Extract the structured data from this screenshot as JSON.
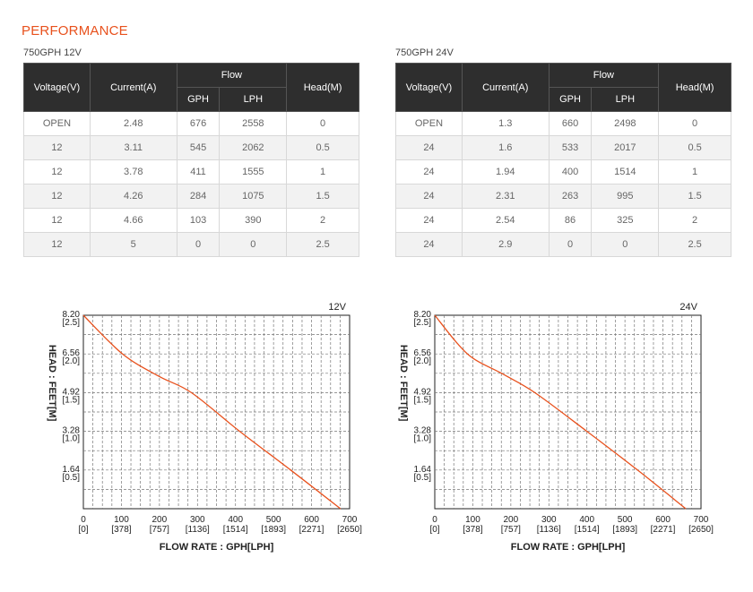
{
  "page": {
    "title": "PERFORMANCE"
  },
  "tables": [
    {
      "caption": "750GPH 12V",
      "headers": {
        "voltage": "Voltage(V)",
        "current": "Current(A)",
        "flow": "Flow",
        "gph": "GPH",
        "lph": "LPH",
        "head": "Head(M)"
      },
      "rows": [
        [
          "OPEN",
          "2.48",
          "676",
          "2558",
          "0"
        ],
        [
          "12",
          "3.11",
          "545",
          "2062",
          "0.5"
        ],
        [
          "12",
          "3.78",
          "411",
          "1555",
          "1"
        ],
        [
          "12",
          "4.26",
          "284",
          "1075",
          "1.5"
        ],
        [
          "12",
          "4.66",
          "103",
          "390",
          "2"
        ],
        [
          "12",
          "5",
          "0",
          "0",
          "2.5"
        ]
      ]
    },
    {
      "caption": "750GPH 24V",
      "headers": {
        "voltage": "Voltage(V)",
        "current": "Current(A)",
        "flow": "Flow",
        "gph": "GPH",
        "lph": "LPH",
        "head": "Head(M)"
      },
      "rows": [
        [
          "OPEN",
          "1.3",
          "660",
          "2498",
          "0"
        ],
        [
          "24",
          "1.6",
          "533",
          "2017",
          "0.5"
        ],
        [
          "24",
          "1.94",
          "400",
          "1514",
          "1"
        ],
        [
          "24",
          "2.31",
          "263",
          "995",
          "1.5"
        ],
        [
          "24",
          "2.54",
          "86",
          "325",
          "2"
        ],
        [
          "24",
          "2.9",
          "0",
          "0",
          "2.5"
        ]
      ]
    }
  ],
  "chart_data": [
    {
      "type": "line",
      "title": "12V",
      "xlabel": "FLOW RATE : GPH[LPH]",
      "ylabel": "HEAD : FEET[M]",
      "xlim": [
        0,
        700
      ],
      "ylim": [
        0,
        8.2
      ],
      "x_ticks": [
        {
          "value": 0,
          "top": "0",
          "bottom": "[0]"
        },
        {
          "value": 100,
          "top": "100",
          "bottom": "[378]"
        },
        {
          "value": 200,
          "top": "200",
          "bottom": "[757]"
        },
        {
          "value": 300,
          "top": "300",
          "bottom": "[1136]"
        },
        {
          "value": 400,
          "top": "400",
          "bottom": "[1514]"
        },
        {
          "value": 500,
          "top": "500",
          "bottom": "[1893]"
        },
        {
          "value": 600,
          "top": "600",
          "bottom": "[2271]"
        },
        {
          "value": 700,
          "top": "700",
          "bottom": "[2650]"
        }
      ],
      "y_ticks": [
        {
          "value": 8.2,
          "top": "8.20",
          "bottom": "[2.5]"
        },
        {
          "value": 6.56,
          "top": "6.56",
          "bottom": "[2.0]"
        },
        {
          "value": 4.92,
          "top": "4.92",
          "bottom": "[1.5]"
        },
        {
          "value": 3.28,
          "top": "3.28",
          "bottom": "[1.0]"
        },
        {
          "value": 1.64,
          "top": "1.64",
          "bottom": "[0.5]"
        }
      ],
      "grid": true,
      "series": [
        {
          "color": "#e8511d",
          "x": [
            0,
            103,
            200,
            284,
            411,
            545,
            676
          ],
          "y": [
            8.2,
            6.56,
            5.6,
            4.92,
            3.28,
            1.64,
            0
          ]
        }
      ]
    },
    {
      "type": "line",
      "title": "24V",
      "xlabel": "FLOW RATE : GPH[LPH]",
      "ylabel": "HEAD : FEET[M]",
      "xlim": [
        0,
        700
      ],
      "ylim": [
        0,
        8.2
      ],
      "x_ticks": [
        {
          "value": 0,
          "top": "0",
          "bottom": "[0]"
        },
        {
          "value": 100,
          "top": "100",
          "bottom": "[378]"
        },
        {
          "value": 200,
          "top": "200",
          "bottom": "[757]"
        },
        {
          "value": 300,
          "top": "300",
          "bottom": "[1136]"
        },
        {
          "value": 400,
          "top": "400",
          "bottom": "[1514]"
        },
        {
          "value": 500,
          "top": "500",
          "bottom": "[1893]"
        },
        {
          "value": 600,
          "top": "600",
          "bottom": "[2271]"
        },
        {
          "value": 700,
          "top": "700",
          "bottom": "[2650]"
        }
      ],
      "y_ticks": [
        {
          "value": 8.2,
          "top": "8.20",
          "bottom": "[2.5]"
        },
        {
          "value": 6.56,
          "top": "6.56",
          "bottom": "[2.0]"
        },
        {
          "value": 4.92,
          "top": "4.92",
          "bottom": "[1.5]"
        },
        {
          "value": 3.28,
          "top": "3.28",
          "bottom": "[1.0]"
        },
        {
          "value": 1.64,
          "top": "1.64",
          "bottom": "[0.5]"
        }
      ],
      "grid": true,
      "series": [
        {
          "color": "#e8511d",
          "x": [
            0,
            86,
            180,
            263,
            400,
            533,
            660
          ],
          "y": [
            8.2,
            6.56,
            5.7,
            4.92,
            3.28,
            1.64,
            0
          ]
        }
      ]
    }
  ]
}
